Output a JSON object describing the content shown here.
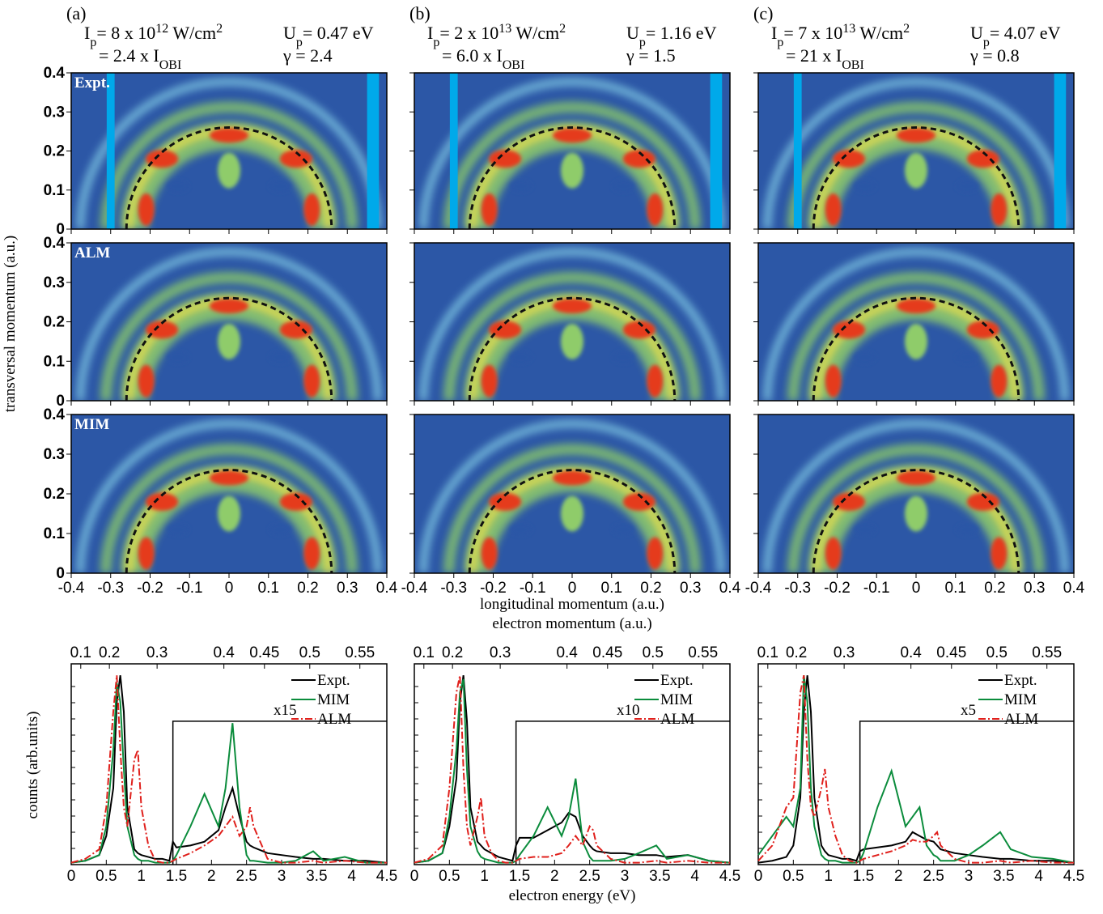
{
  "chart_data": [
    {
      "type": "heatmap",
      "panel": "(a)",
      "intensity": [
        "I",
        "p",
        "= 8 x 10",
        "12",
        " W/cm",
        "2"
      ],
      "ratio": [
        "= 2.4 x I",
        "OBI"
      ],
      "ponderomotive": [
        "U",
        "p",
        "= 0.47 eV"
      ],
      "keldysh": "γ = 2.4",
      "rows": [
        "Expt.",
        "ALM",
        "MIM"
      ],
      "xlim": [
        -0.4,
        0.4
      ],
      "xticks": [
        -0.4,
        -0.3,
        -0.2,
        -0.1,
        0,
        0.1,
        0.2,
        0.3,
        0.4
      ],
      "ylim": [
        0,
        0.4
      ],
      "yticks": [
        0,
        0.1,
        0.2,
        0.3,
        0.4
      ],
      "circle_radius": 0.26,
      "ylabel": "transversal momentum (a.u.)"
    },
    {
      "type": "heatmap",
      "panel": "(b)",
      "intensity": [
        "I",
        "p",
        "= 2 x 10",
        "13",
        " W/cm",
        "2"
      ],
      "ratio": [
        "= 6.0 x I",
        "OBI"
      ],
      "ponderomotive": [
        "U",
        "p",
        "= 1.16 eV"
      ],
      "keldysh": "γ = 1.5",
      "rows": [
        "",
        "",
        ""
      ],
      "xlim": [
        -0.4,
        0.4
      ],
      "xticks": [
        -0.4,
        -0.3,
        -0.2,
        -0.1,
        0,
        0.1,
        0.2,
        0.3,
        0.4
      ],
      "ylim": [
        0,
        0.4
      ],
      "yticks": [
        0,
        0.1,
        0.2,
        0.3,
        0.4
      ],
      "circle_radius": 0.26,
      "xlabel": "longitudinal momentum (a.u.)"
    },
    {
      "type": "heatmap",
      "panel": "(c)",
      "intensity": [
        "I",
        "p",
        "= 7 x 10",
        "13",
        " W/cm",
        "2"
      ],
      "ratio": [
        "= 21 x I",
        "OBI"
      ],
      "ponderomotive": [
        "U",
        "p",
        "= 4.07 eV"
      ],
      "keldysh": "γ = 0.8",
      "rows": [
        "",
        "",
        ""
      ],
      "xlim": [
        -0.4,
        0.4
      ],
      "xticks": [
        -0.4,
        -0.3,
        -0.2,
        -0.1,
        0,
        0.1,
        0.2,
        0.3,
        0.4
      ],
      "ylim": [
        0,
        0.4
      ],
      "yticks": [
        0,
        0.1,
        0.2,
        0.3,
        0.4
      ],
      "circle_radius": 0.26
    },
    {
      "type": "line",
      "x": [
        0,
        0.2,
        0.4,
        0.5,
        0.6,
        0.65,
        0.7,
        0.75,
        0.8,
        0.9,
        0.95,
        1.0,
        1.1,
        1.2,
        1.3,
        1.4,
        1.45,
        1.5,
        1.7,
        1.9,
        2.1,
        2.2,
        2.3,
        2.4,
        2.5,
        2.55,
        2.6,
        2.8,
        3.0,
        3.2,
        3.45,
        3.6,
        3.9,
        4.2,
        4.5
      ],
      "series": [
        {
          "name": "Expt.",
          "color": "#000000",
          "values": [
            0.01,
            0.02,
            0.05,
            0.15,
            0.4,
            0.85,
            0.99,
            0.8,
            0.3,
            0.08,
            0.06,
            0.05,
            0.04,
            0.03,
            0.03,
            0.02,
            0.12,
            0.09,
            0.1,
            0.12,
            0.18,
            0.3,
            0.4,
            0.25,
            0.12,
            0.1,
            0.09,
            0.06,
            0.05,
            0.04,
            0.03,
            0.03,
            0.02,
            0.02,
            0.01
          ]
        },
        {
          "name": "MIM",
          "color": "#0b8c3c",
          "values": [
            0.01,
            0.02,
            0.05,
            0.2,
            0.6,
            0.95,
            0.85,
            0.5,
            0.2,
            0.05,
            0.03,
            0.02,
            0.02,
            0.01,
            0.01,
            0.01,
            0.02,
            0.05,
            0.2,
            0.37,
            0.2,
            0.4,
            0.74,
            0.3,
            0.05,
            0.02,
            0.02,
            0.01,
            0.01,
            0.02,
            0.07,
            0.02,
            0.04,
            0.01,
            0.01
          ]
        },
        {
          "name": "ALM",
          "color": "#e0201c",
          "values": [
            0.01,
            0.03,
            0.08,
            0.3,
            0.8,
            0.99,
            0.6,
            0.3,
            0.2,
            0.55,
            0.6,
            0.3,
            0.1,
            0.02,
            0.01,
            0.01,
            0.02,
            0.03,
            0.06,
            0.1,
            0.15,
            0.2,
            0.25,
            0.15,
            0.2,
            0.3,
            0.2,
            0.03,
            0.01,
            0.01,
            0.02,
            0.01,
            0.02,
            0.01,
            0.01
          ]
        }
      ],
      "xlim": [
        0,
        4.5
      ],
      "xticks": [
        0,
        0.5,
        1,
        1.5,
        2,
        2.5,
        3,
        3.5,
        4,
        4.5
      ],
      "ylim": [
        0,
        1.05
      ],
      "x2ticks": [
        0.1,
        0.2,
        0.3,
        0.4,
        0.45,
        0.5,
        0.55
      ],
      "scaled_from": 1.45,
      "scaled_level": 0.75,
      "scale_label": "x15",
      "ylabel": "counts (arb.units)"
    },
    {
      "type": "line",
      "x": [
        0,
        0.2,
        0.4,
        0.5,
        0.6,
        0.65,
        0.7,
        0.75,
        0.8,
        0.9,
        0.95,
        1.0,
        1.1,
        1.2,
        1.3,
        1.4,
        1.45,
        1.5,
        1.7,
        1.9,
        2.1,
        2.2,
        2.3,
        2.4,
        2.5,
        2.55,
        2.6,
        2.8,
        3.0,
        3.2,
        3.45,
        3.6,
        3.9,
        4.2,
        4.5
      ],
      "series": [
        {
          "name": "Expt.",
          "color": "#000000",
          "values": [
            0.01,
            0.02,
            0.06,
            0.2,
            0.45,
            0.85,
            0.99,
            0.75,
            0.3,
            0.12,
            0.1,
            0.08,
            0.06,
            0.04,
            0.03,
            0.02,
            0.1,
            0.14,
            0.14,
            0.18,
            0.22,
            0.27,
            0.25,
            0.15,
            0.1,
            0.08,
            0.07,
            0.06,
            0.06,
            0.05,
            0.05,
            0.04,
            0.05,
            0.02,
            0.01
          ]
        },
        {
          "name": "MIM",
          "color": "#0b8c3c",
          "values": [
            0.01,
            0.02,
            0.06,
            0.25,
            0.6,
            0.9,
            0.97,
            0.5,
            0.2,
            0.07,
            0.04,
            0.03,
            0.02,
            0.01,
            0.01,
            0.01,
            0.02,
            0.05,
            0.15,
            0.3,
            0.15,
            0.25,
            0.45,
            0.12,
            0.04,
            0.02,
            0.02,
            0.02,
            0.03,
            0.06,
            0.1,
            0.03,
            0.05,
            0.02,
            0.01
          ]
        },
        {
          "name": "ALM",
          "color": "#e0201c",
          "values": [
            0.01,
            0.03,
            0.1,
            0.4,
            0.9,
            0.99,
            0.5,
            0.2,
            0.1,
            0.25,
            0.35,
            0.15,
            0.06,
            0.02,
            0.01,
            0.01,
            0.02,
            0.03,
            0.04,
            0.04,
            0.06,
            0.1,
            0.15,
            0.1,
            0.2,
            0.18,
            0.1,
            0.03,
            0.01,
            0.01,
            0.02,
            0.01,
            0.02,
            0.01,
            0.01
          ]
        }
      ],
      "xlim": [
        0,
        4.5
      ],
      "xticks": [
        0,
        0.5,
        1,
        1.5,
        2,
        2.5,
        3,
        3.5,
        4,
        4.5
      ],
      "ylim": [
        0,
        1.05
      ],
      "x2ticks": [
        0.1,
        0.2,
        0.3,
        0.4,
        0.45,
        0.5,
        0.55
      ],
      "scaled_from": 1.45,
      "scaled_level": 0.75,
      "scale_label": "x10",
      "xlabel": "electron energy (eV)",
      "x2label": "electron momentum (a.u.)"
    },
    {
      "type": "line",
      "x": [
        0,
        0.2,
        0.4,
        0.5,
        0.6,
        0.65,
        0.7,
        0.75,
        0.8,
        0.9,
        0.95,
        1.0,
        1.1,
        1.2,
        1.3,
        1.4,
        1.45,
        1.5,
        1.7,
        1.9,
        2.1,
        2.2,
        2.3,
        2.4,
        2.5,
        2.55,
        2.6,
        2.8,
        3.0,
        3.2,
        3.45,
        3.6,
        3.9,
        4.2,
        4.5
      ],
      "series": [
        {
          "name": "Expt.",
          "color": "#000000",
          "values": [
            0.01,
            0.02,
            0.04,
            0.1,
            0.35,
            0.8,
            0.99,
            0.8,
            0.35,
            0.1,
            0.07,
            0.05,
            0.04,
            0.03,
            0.03,
            0.02,
            0.07,
            0.08,
            0.09,
            0.1,
            0.12,
            0.17,
            0.15,
            0.13,
            0.12,
            0.1,
            0.08,
            0.06,
            0.05,
            0.04,
            0.03,
            0.03,
            0.02,
            0.02,
            0.01
          ]
        },
        {
          "name": "MIM",
          "color": "#0b8c3c",
          "values": [
            0.05,
            0.15,
            0.25,
            0.2,
            0.4,
            0.99,
            0.85,
            0.4,
            0.2,
            0.05,
            0.03,
            0.02,
            0.02,
            0.01,
            0.01,
            0.01,
            0.02,
            0.06,
            0.3,
            0.49,
            0.2,
            0.25,
            0.3,
            0.1,
            0.05,
            0.04,
            0.02,
            0.02,
            0.05,
            0.1,
            0.17,
            0.08,
            0.04,
            0.03,
            0.01
          ]
        },
        {
          "name": "ALM",
          "color": "#e0201c",
          "values": [
            0.02,
            0.1,
            0.3,
            0.35,
            0.9,
            0.99,
            0.55,
            0.3,
            0.25,
            0.4,
            0.5,
            0.3,
            0.15,
            0.05,
            0.02,
            0.01,
            0.02,
            0.03,
            0.05,
            0.07,
            0.1,
            0.13,
            0.12,
            0.12,
            0.15,
            0.17,
            0.1,
            0.03,
            0.01,
            0.01,
            0.02,
            0.01,
            0.02,
            0.01,
            0.01
          ]
        }
      ],
      "xlim": [
        0,
        4.5
      ],
      "xticks": [
        0,
        0.5,
        1,
        1.5,
        2,
        2.5,
        3,
        3.5,
        4,
        4.5
      ],
      "ylim": [
        0,
        1.05
      ],
      "x2ticks": [
        0.1,
        0.2,
        0.3,
        0.4,
        0.45,
        0.5,
        0.55
      ],
      "scaled_from": 1.45,
      "scaled_level": 0.75,
      "scale_label": "x5"
    }
  ]
}
